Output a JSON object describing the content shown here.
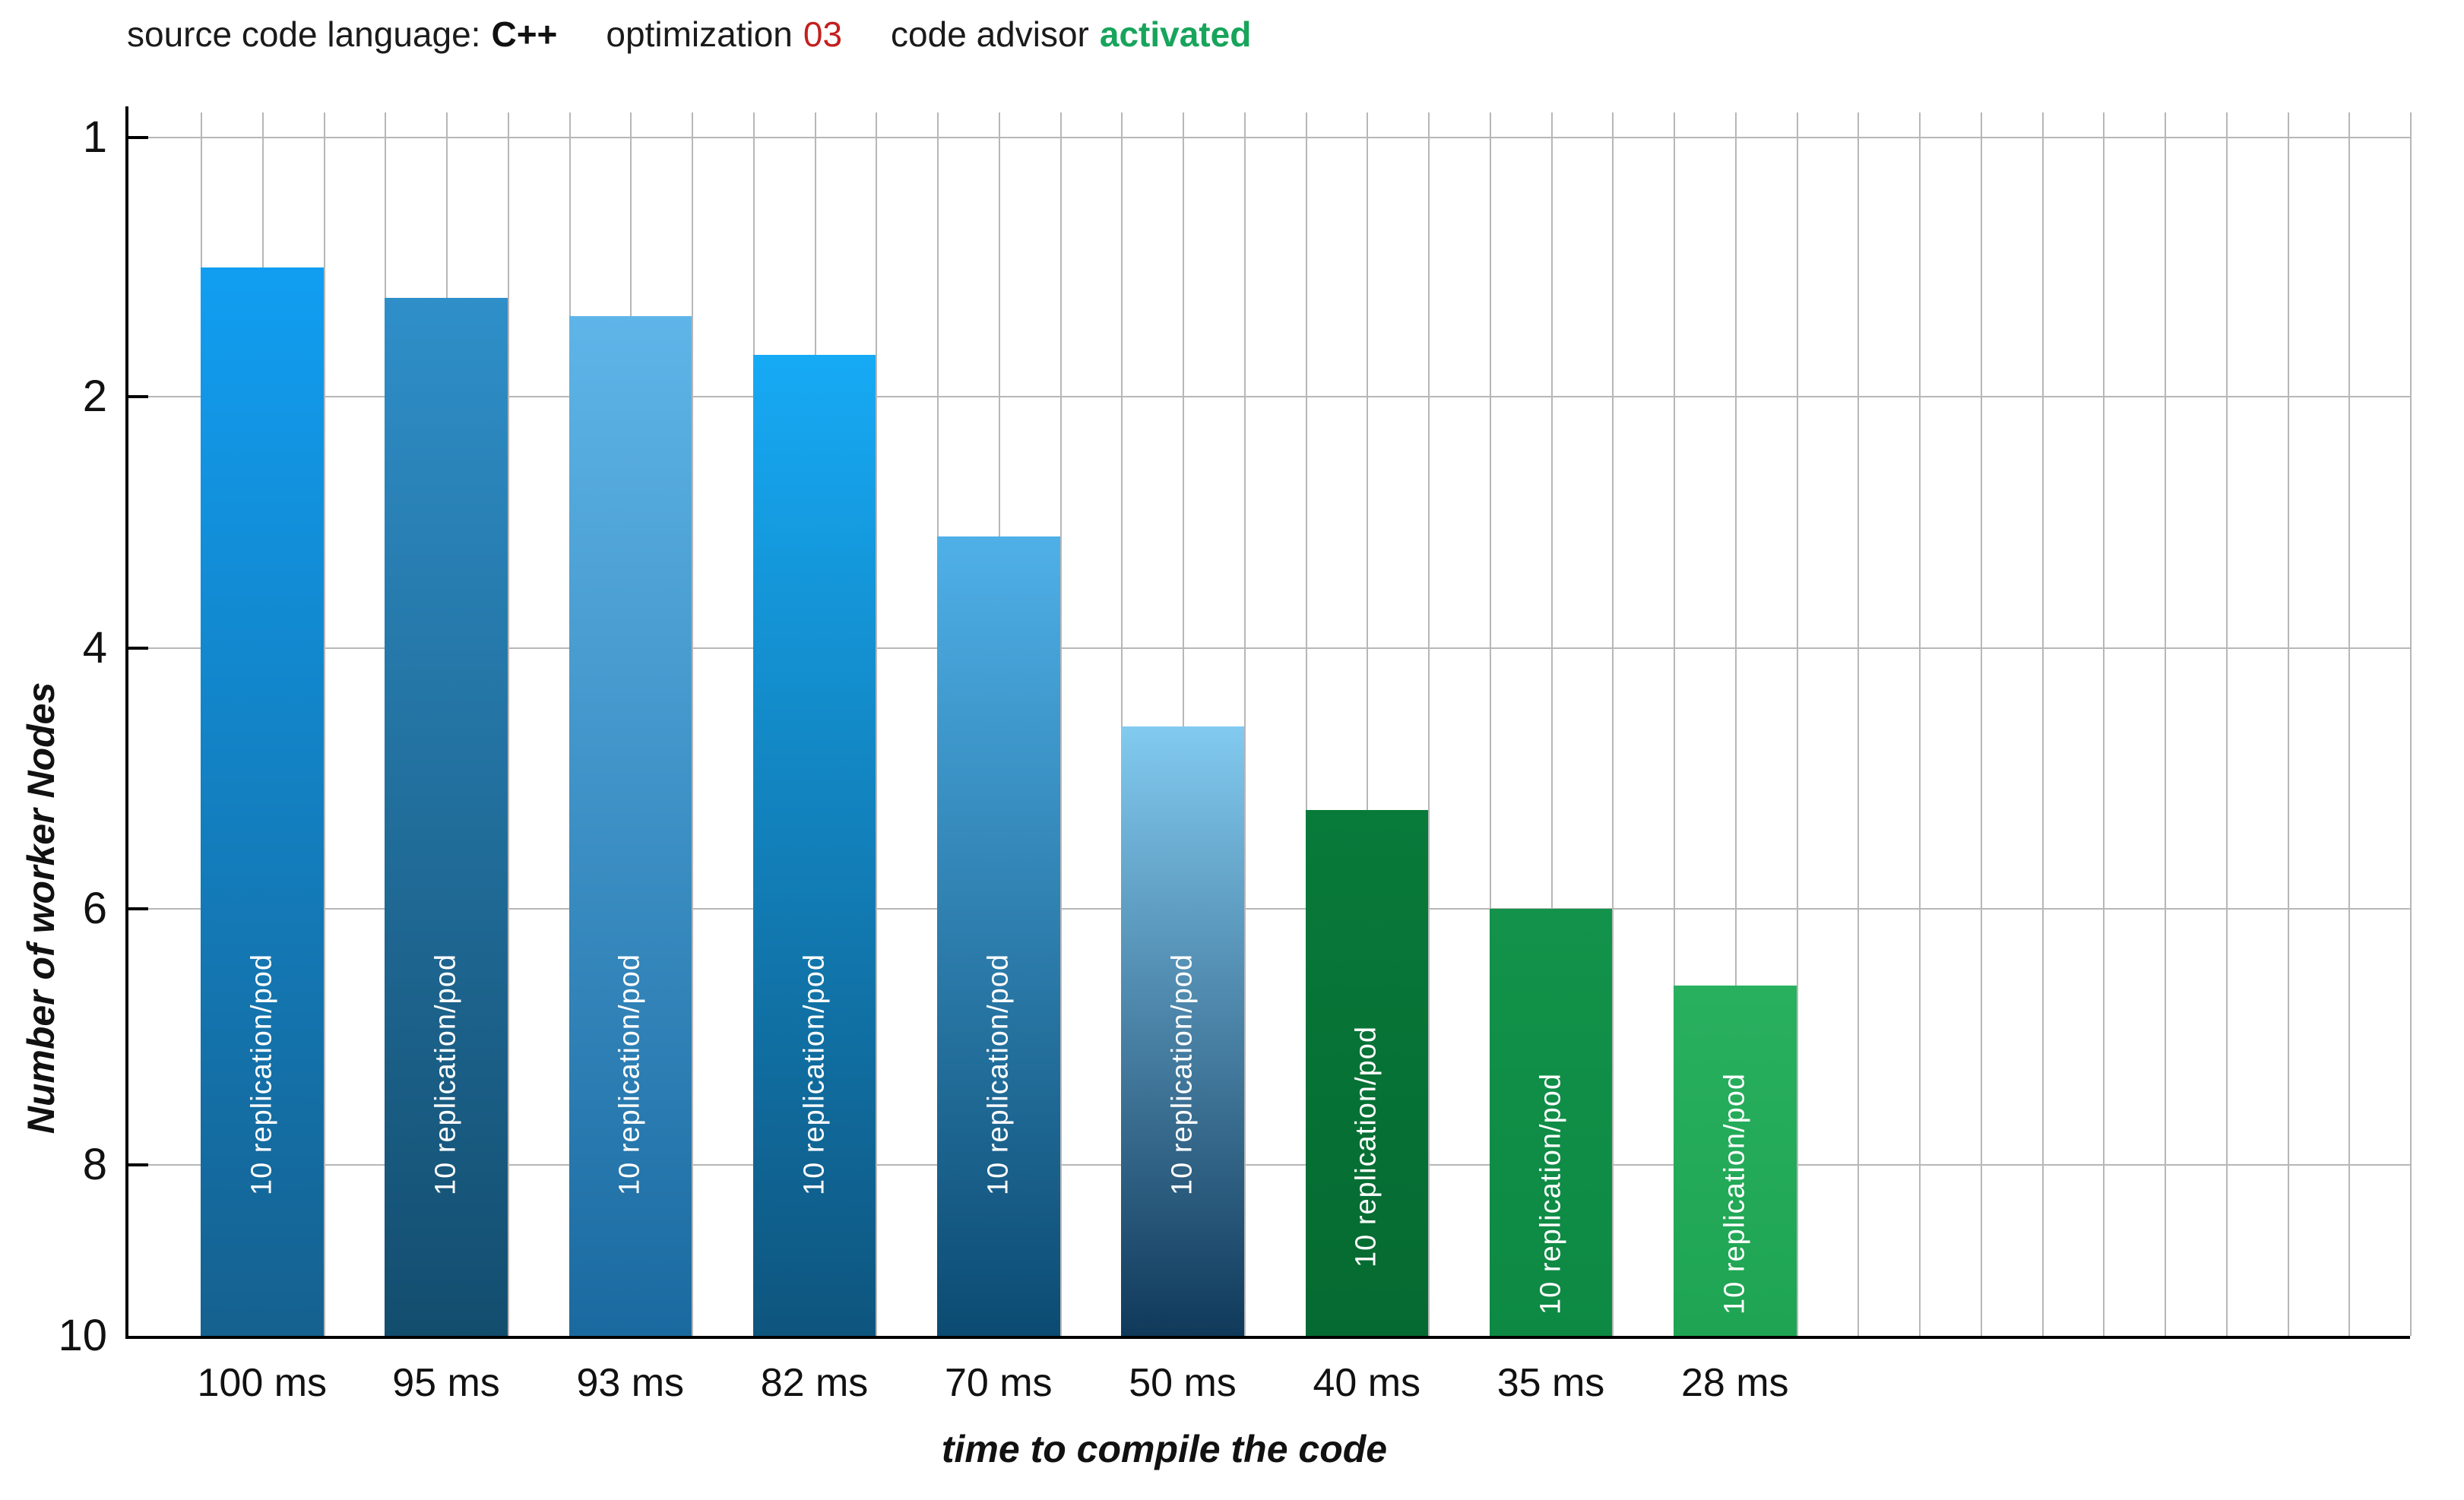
{
  "header": {
    "items": [
      {
        "label": "source code language:",
        "value": "C++",
        "style": "bold-dark"
      },
      {
        "label": "optimization",
        "value": "03",
        "style": "red"
      },
      {
        "label": "code advisor",
        "value": "activated",
        "style": "bold-green"
      }
    ],
    "colors": {
      "red": "#C41F1F",
      "green": "#17A45B",
      "dark": "#111111"
    }
  },
  "chart_data": {
    "type": "bar",
    "orientation": "vertical",
    "title": "",
    "xlabel": "time to compile  the code",
    "ylabel": "Number of worker Nodes",
    "categories": [
      "100 ms",
      "95 ms",
      "93 ms",
      "82 ms",
      "70 ms",
      "50 ms",
      "40 ms",
      "35 ms",
      "28 ms"
    ],
    "series": [
      {
        "name": "Number of worker Nodes",
        "values": [
          1.5,
          1.62,
          1.69,
          1.84,
          3.11,
          4.6,
          5.24,
          6.0,
          6.6
        ]
      }
    ],
    "bar_inner_label": "10 replication/pod",
    "y_axis": {
      "ticks": [
        1,
        2,
        4,
        6,
        8,
        10
      ],
      "inverted": true,
      "top_value": 1,
      "baseline_value": 10
    },
    "bar_colors": [
      {
        "top": "#119EF2",
        "bottom": "#15618F"
      },
      {
        "top": "#2F8FC9",
        "bottom": "#134D6E"
      },
      {
        "top": "#5FB5E8",
        "bottom": "#1A6AA0"
      },
      {
        "top": "#16AAF5",
        "bottom": "#0E557E"
      },
      {
        "top": "#4FB0E8",
        "bottom": "#0B4B72"
      },
      {
        "top": "#82CAF0",
        "bottom": "#10395A"
      },
      {
        "top": "#087A3A",
        "bottom": "#056A31"
      },
      {
        "top": "#12924A",
        "bottom": "#0D8943"
      },
      {
        "top": "#29B05F",
        "bottom": "#1EA452"
      }
    ],
    "grid": {
      "vertical": true,
      "horizontal_at_ticks": true,
      "color": "#B7B7B7"
    },
    "legend_position": "none"
  }
}
